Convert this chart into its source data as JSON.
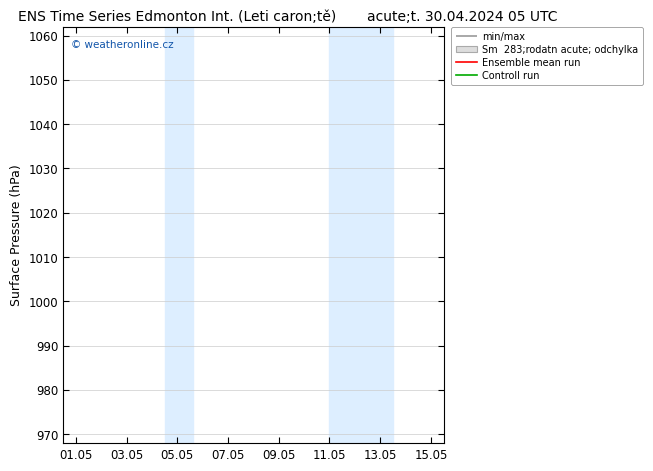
{
  "title_left": "ENS Time Series Edmonton Int. (Leti caron;tě)",
  "title_right": "acute;t. 30.04.2024 05 UTC",
  "ylabel": "Surface Pressure (hPa)",
  "ylim": [
    968,
    1062
  ],
  "yticks": [
    970,
    980,
    990,
    1000,
    1010,
    1020,
    1030,
    1040,
    1050,
    1060
  ],
  "xtick_labels": [
    "01.05",
    "03.05",
    "05.05",
    "07.05",
    "09.05",
    "11.05",
    "13.05",
    "15.05"
  ],
  "xtick_days": [
    1,
    3,
    5,
    7,
    9,
    11,
    13,
    15
  ],
  "xlim": [
    0.5,
    15.5
  ],
  "shaded_bands": [
    {
      "start": 4.5,
      "end": 5.6
    },
    {
      "start": 11.0,
      "end": 13.5
    }
  ],
  "band_color": "#ddeeff",
  "watermark_text": "© weatheronline.cz",
  "watermark_color": "#1155aa",
  "legend_labels": [
    "min/max",
    "Sm  283;rodatn acute; odchylka",
    "Ensemble mean run",
    "Controll run"
  ],
  "legend_colors": [
    "#999999",
    "#cccccc",
    "#ff0000",
    "#00aa00"
  ],
  "background_color": "#ffffff",
  "title_fontsize": 10,
  "tick_fontsize": 8.5,
  "ylabel_fontsize": 9
}
